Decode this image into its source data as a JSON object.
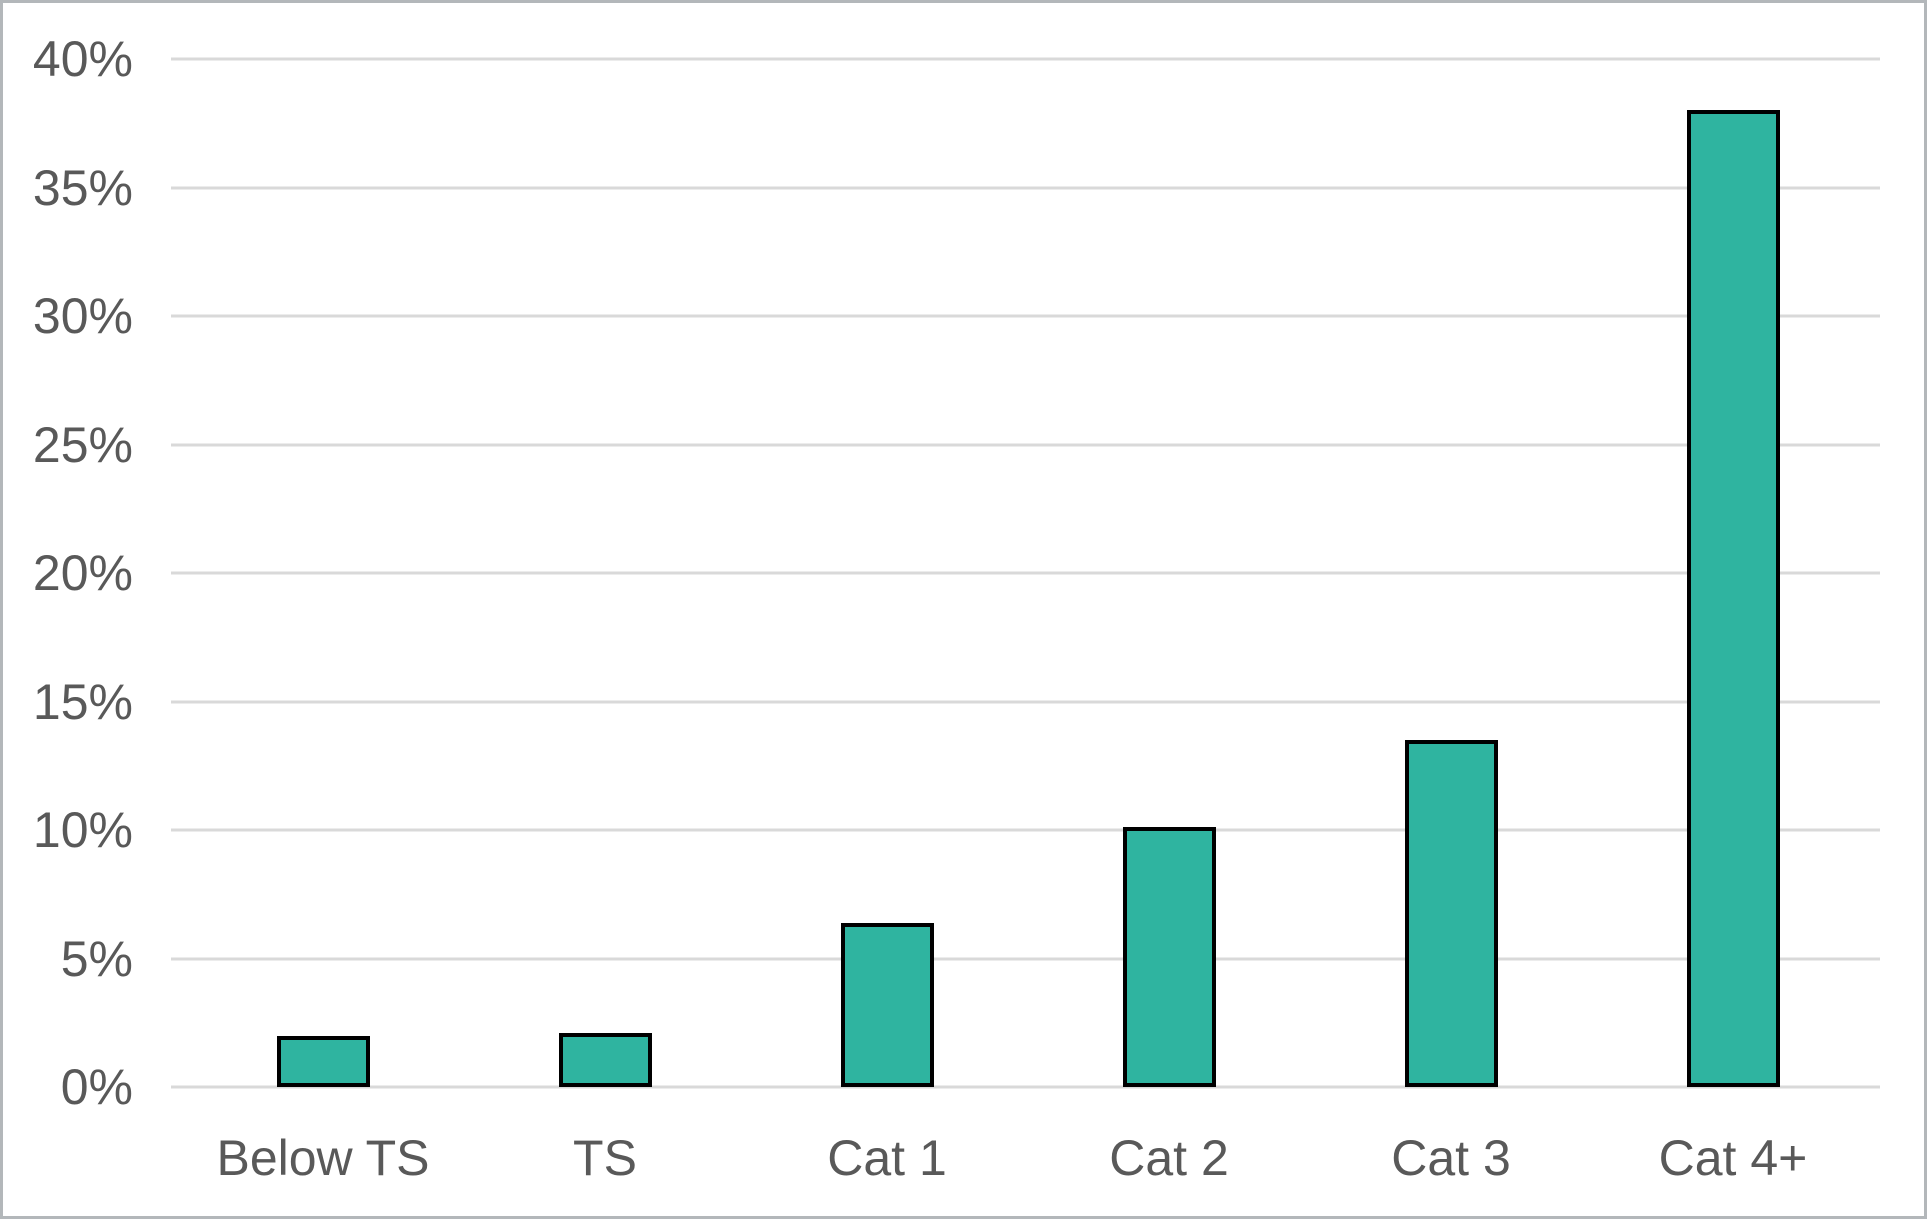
{
  "figure": {
    "background": "#ffffff",
    "frame_border_color": "#b3b7ba"
  },
  "chart_data": {
    "type": "bar",
    "title": "",
    "xlabel": "",
    "ylabel": "",
    "categories": [
      "Below TS",
      "TS",
      "Cat 1",
      "Cat 2",
      "Cat 3",
      "Cat 4+"
    ],
    "values": [
      2.0,
      2.1,
      6.4,
      10.1,
      13.5,
      38.0
    ],
    "value_unit": "%",
    "ylim": [
      0,
      40
    ],
    "yticks": [
      0,
      5,
      10,
      15,
      20,
      25,
      30,
      35,
      40
    ],
    "ytick_labels": [
      "0%",
      "5%",
      "10%",
      "15%",
      "20%",
      "25%",
      "30%",
      "35%",
      "40%"
    ],
    "grid": true,
    "legend": false,
    "bar_fill_color": "#2fb4a0",
    "bar_border_color": "#000000",
    "gridline_color": "#d9d9d9",
    "axis_label_color": "#595959"
  }
}
